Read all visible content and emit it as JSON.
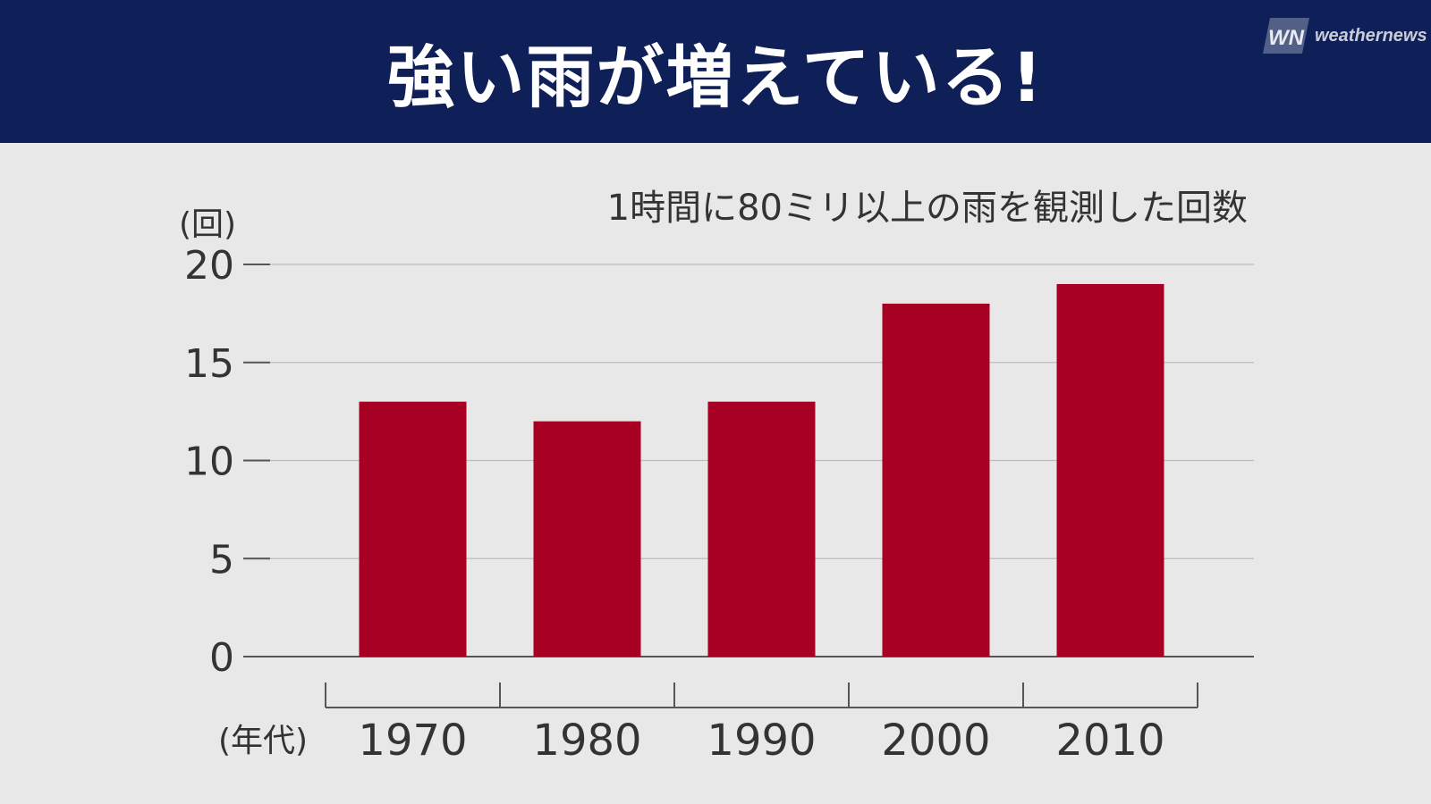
{
  "header": {
    "title": "強い雨が増えている!",
    "logo_text": "weathernews",
    "logo_badge": "WN"
  },
  "colors": {
    "header_bg": "#0f1f57",
    "bar": "#a80022",
    "background": "#e8e8e8"
  },
  "chart_data": {
    "type": "bar",
    "title": "1時間に80ミリ以上の雨を観測した回数",
    "ylabel": "(回)",
    "xlabel": "(年代)",
    "categories": [
      "1970",
      "1980",
      "1990",
      "2000",
      "2010"
    ],
    "values": [
      13,
      12,
      13,
      18,
      19
    ],
    "ylim": [
      0,
      20
    ],
    "yticks": [
      0,
      5,
      10,
      15,
      20
    ],
    "grid": true
  }
}
